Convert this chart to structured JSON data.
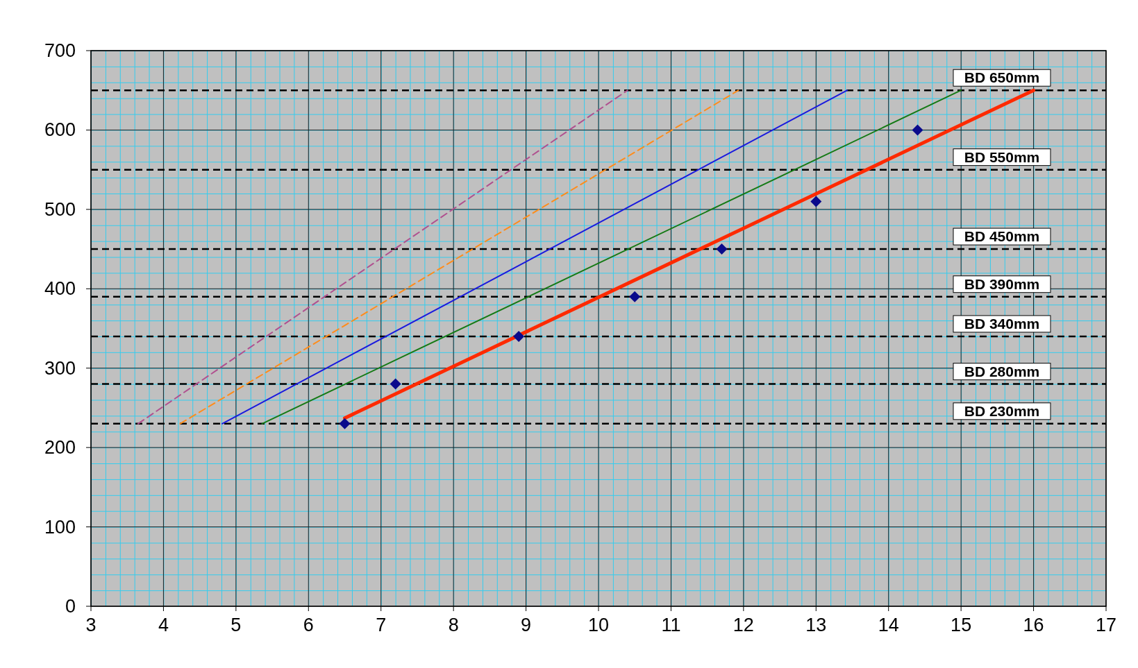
{
  "chart_data": {
    "type": "line",
    "xlim": [
      3,
      17
    ],
    "ylim": [
      0,
      700
    ],
    "xticks": [
      3,
      4,
      5,
      6,
      7,
      8,
      9,
      10,
      11,
      12,
      13,
      14,
      15,
      16,
      17
    ],
    "yticks": [
      0,
      100,
      200,
      300,
      400,
      500,
      600,
      700
    ],
    "grid": true,
    "series": [
      {
        "color": "#b0508f",
        "line_style": "dashed",
        "x": [
          3.65,
          10.4
        ],
        "values": [
          230,
          650
        ]
      },
      {
        "color": "#ff8c1a",
        "line_style": "dashed",
        "x": [
          4.23,
          11.93
        ],
        "values": [
          230,
          650
        ]
      },
      {
        "color": "#1a1ade",
        "line_style": "solid",
        "x": [
          4.81,
          13.43
        ],
        "values": [
          230,
          650
        ]
      },
      {
        "color": "#157a15",
        "line_style": "solid",
        "x": [
          5.36,
          15
        ],
        "values": [
          230,
          650
        ]
      },
      {
        "color": "#ff2a00",
        "line_style": "solid",
        "x": [
          6.5,
          16
        ],
        "values": [
          237,
          650
        ]
      },
      {
        "type": "scatter",
        "color": "#0a0a8c",
        "marker": "diamond",
        "x": [
          6.5,
          7.2,
          8.9,
          10.5,
          11.7,
          13,
          14.4
        ],
        "values": [
          230,
          280,
          340,
          390,
          450,
          510,
          600
        ]
      }
    ],
    "ref_lines": [
      {
        "axis": "y",
        "value": 230,
        "label": "BD 230mm",
        "color": "#000000",
        "line_style": "dashed"
      },
      {
        "axis": "y",
        "value": 280,
        "label": "BD 280mm",
        "color": "#000000",
        "line_style": "dashed"
      },
      {
        "axis": "y",
        "value": 340,
        "label": "BD 340mm",
        "color": "#000000",
        "line_style": "dashed"
      },
      {
        "axis": "y",
        "value": 390,
        "label": "BD 390mm",
        "color": "#000000",
        "line_style": "dashed"
      },
      {
        "axis": "y",
        "value": 450,
        "label": "BD 450mm",
        "color": "#000000",
        "line_style": "dashed"
      },
      {
        "axis": "y",
        "value": 550,
        "label": "BD 550mm",
        "color": "#000000",
        "line_style": "dashed"
      },
      {
        "axis": "y",
        "value": 650,
        "label": "BD 650mm",
        "color": "#000000",
        "line_style": "dashed"
      }
    ]
  }
}
